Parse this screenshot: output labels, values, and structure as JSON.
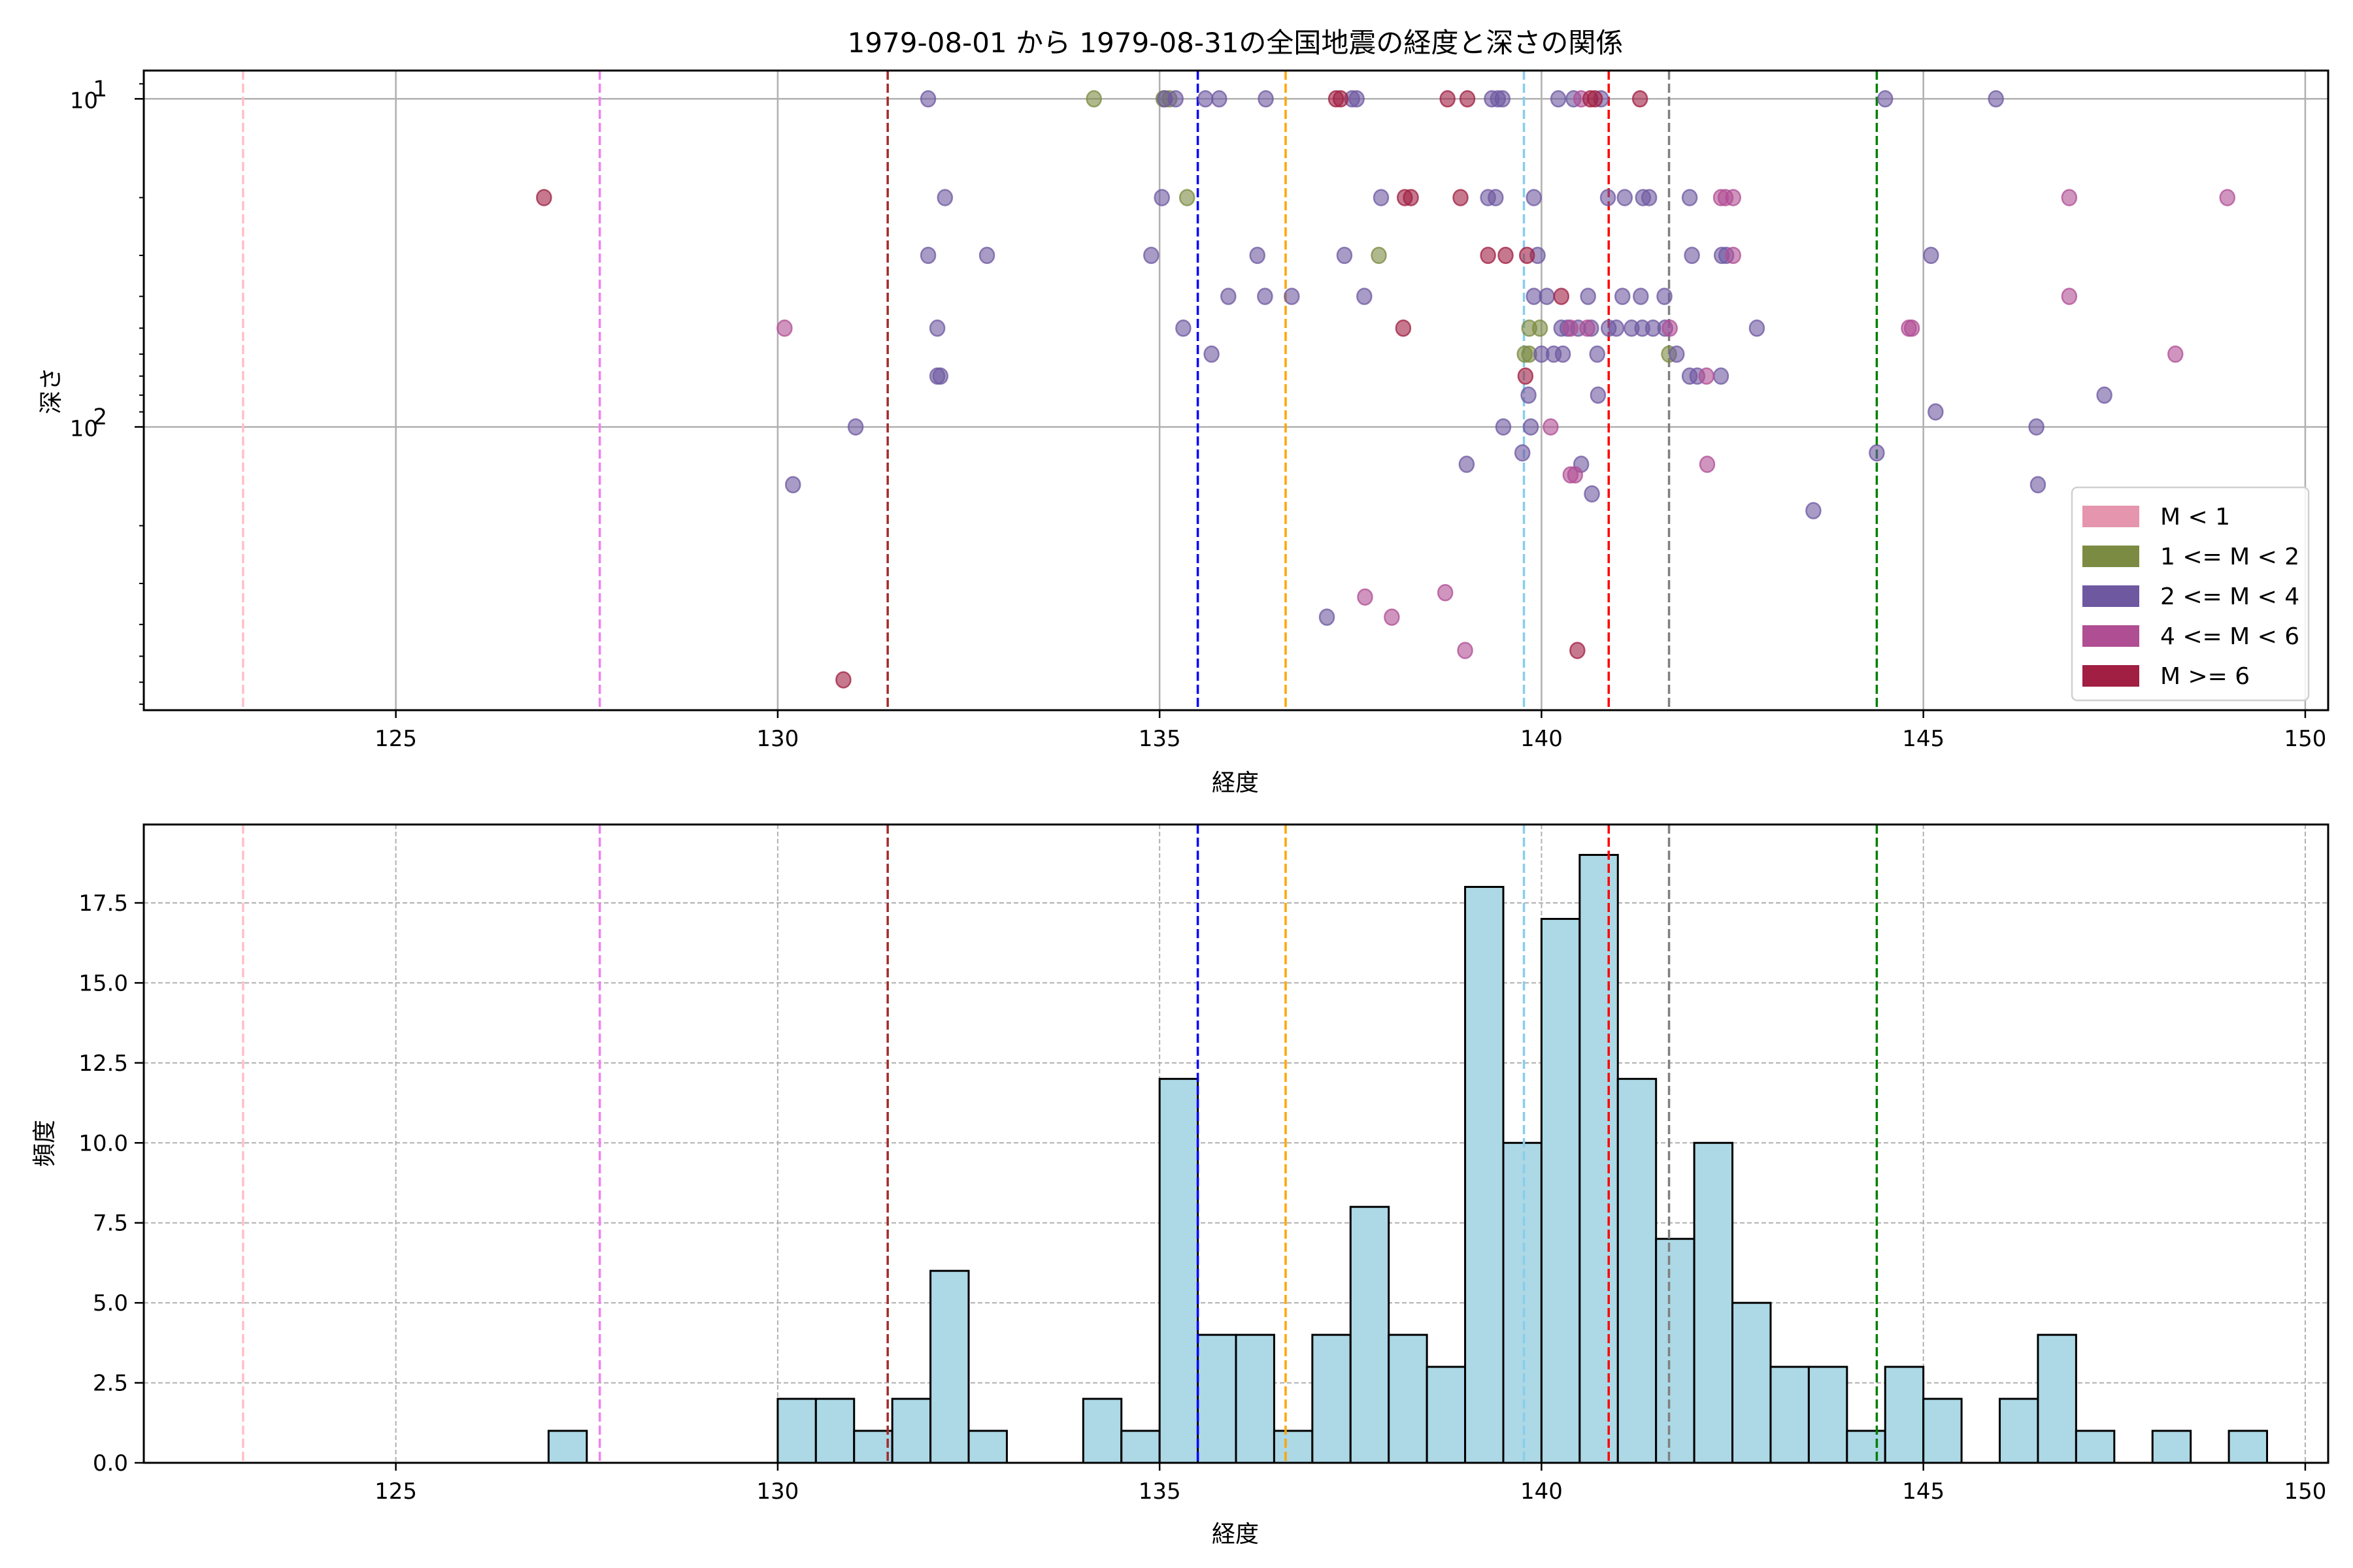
{
  "chart_data": [
    {
      "type": "scatter",
      "title": "1979-08-01 から 1979-08-31の全国地震の経度と深さの関係",
      "xlabel": "経度",
      "ylabel": "深さ",
      "xlim": [
        121.7,
        150.3
      ],
      "xticks": [
        125,
        130,
        135,
        140,
        145,
        150
      ],
      "xtick_labels": [
        "125",
        "130",
        "135",
        "140",
        "145",
        "150"
      ],
      "yscale": "log",
      "y_inverted": true,
      "ylim": [
        8.2,
        730
      ],
      "yticks": [
        10,
        100
      ],
      "ytick_labels": [
        [
          "10",
          "1"
        ],
        [
          "10",
          "2"
        ]
      ],
      "grid": true,
      "legend": {
        "placement": "lower-right",
        "entries": [
          {
            "label": "M < 1",
            "color": "#E595AE"
          },
          {
            "label": "1 <= M < 2",
            "color": "#7B8B42"
          },
          {
            "label": "2 <= M < 4",
            "color": "#6E58A0"
          },
          {
            "label": "4 <= M < 6",
            "color": "#B04E94"
          },
          {
            "label": "M >= 6",
            "color": "#A01F42"
          }
        ]
      },
      "vlines": [
        {
          "x": 123.0,
          "color": "#FFC0CB"
        },
        {
          "x": 127.67,
          "color": "#EE82EE"
        },
        {
          "x": 131.44,
          "color": "#A52A2A"
        },
        {
          "x": 135.5,
          "color": "#0000FF"
        },
        {
          "x": 136.65,
          "color": "#FFA500"
        },
        {
          "x": 139.77,
          "color": "#87CEEB"
        },
        {
          "x": 140.88,
          "color": "#FF0000"
        },
        {
          "x": 141.67,
          "color": "#808080"
        },
        {
          "x": 144.39,
          "color": "#008000"
        }
      ],
      "series": [
        {
          "name": "1 <= M < 2",
          "color": "#7B8B42",
          "points": [
            [
              134.14,
              10
            ],
            [
              135.05,
              10
            ],
            [
              135.13,
              10
            ],
            [
              135.36,
              20
            ],
            [
              137.87,
              30
            ],
            [
              139.84,
              50
            ],
            [
              139.98,
              50
            ],
            [
              139.78,
              60
            ],
            [
              139.84,
              60
            ],
            [
              141.67,
              60
            ]
          ]
        },
        {
          "name": "2 <= M < 4",
          "color": "#6E58A0",
          "points": [
            [
              131.97,
              10
            ],
            [
              135.07,
              10
            ],
            [
              135.21,
              10
            ],
            [
              135.6,
              10
            ],
            [
              135.78,
              10
            ],
            [
              136.39,
              10
            ],
            [
              137.52,
              10
            ],
            [
              137.58,
              10
            ],
            [
              139.35,
              10
            ],
            [
              139.43,
              10
            ],
            [
              139.49,
              10
            ],
            [
              140.22,
              10
            ],
            [
              140.42,
              10
            ],
            [
              140.78,
              10
            ],
            [
              144.5,
              10
            ],
            [
              145.95,
              10
            ],
            [
              132.19,
              20
            ],
            [
              135.03,
              20
            ],
            [
              137.9,
              20
            ],
            [
              139.3,
              20
            ],
            [
              139.4,
              20
            ],
            [
              139.9,
              20
            ],
            [
              140.87,
              20
            ],
            [
              141.09,
              20
            ],
            [
              141.33,
              20
            ],
            [
              141.41,
              20
            ],
            [
              141.94,
              20
            ],
            [
              131.97,
              30
            ],
            [
              132.74,
              30
            ],
            [
              134.89,
              30
            ],
            [
              136.28,
              30
            ],
            [
              137.42,
              30
            ],
            [
              139.95,
              30
            ],
            [
              141.97,
              30
            ],
            [
              142.36,
              30
            ],
            [
              142.42,
              30
            ],
            [
              145.1,
              30
            ],
            [
              135.9,
              40
            ],
            [
              136.38,
              40
            ],
            [
              136.73,
              40
            ],
            [
              137.68,
              40
            ],
            [
              139.9,
              40
            ],
            [
              140.07,
              40
            ],
            [
              140.61,
              40
            ],
            [
              141.06,
              40
            ],
            [
              141.3,
              40
            ],
            [
              141.61,
              40
            ],
            [
              132.09,
              50
            ],
            [
              135.31,
              50
            ],
            [
              140.26,
              50
            ],
            [
              140.34,
              50
            ],
            [
              140.48,
              50
            ],
            [
              140.65,
              50
            ],
            [
              140.88,
              50
            ],
            [
              140.98,
              50
            ],
            [
              141.18,
              50
            ],
            [
              141.32,
              50
            ],
            [
              141.46,
              50
            ],
            [
              141.62,
              50
            ],
            [
              142.82,
              50
            ],
            [
              135.68,
              60
            ],
            [
              140.0,
              60
            ],
            [
              140.16,
              60
            ],
            [
              140.28,
              60
            ],
            [
              140.73,
              60
            ],
            [
              141.77,
              60
            ],
            [
              132.09,
              70
            ],
            [
              132.13,
              70
            ],
            [
              141.94,
              70
            ],
            [
              142.04,
              70
            ],
            [
              142.35,
              70
            ],
            [
              139.83,
              80
            ],
            [
              140.74,
              80
            ],
            [
              147.37,
              80
            ],
            [
              145.16,
              90
            ],
            [
              131.02,
              100
            ],
            [
              139.5,
              100
            ],
            [
              139.86,
              100
            ],
            [
              146.48,
              100
            ],
            [
              139.75,
              120
            ],
            [
              144.39,
              120
            ],
            [
              139.02,
              130
            ],
            [
              140.52,
              130
            ],
            [
              130.2,
              150
            ],
            [
              146.5,
              150
            ],
            [
              140.66,
              160
            ],
            [
              143.56,
              180
            ],
            [
              137.19,
              380
            ]
          ]
        },
        {
          "name": "4 <= M < 6",
          "color": "#B04E94",
          "points": [
            [
              140.52,
              10
            ],
            [
              142.35,
              20
            ],
            [
              142.41,
              20
            ],
            [
              142.51,
              20
            ],
            [
              146.91,
              20
            ],
            [
              148.98,
              20
            ],
            [
              142.51,
              30
            ],
            [
              146.91,
              40
            ],
            [
              130.09,
              50
            ],
            [
              140.38,
              50
            ],
            [
              140.6,
              50
            ],
            [
              141.68,
              50
            ],
            [
              144.81,
              50
            ],
            [
              144.85,
              50
            ],
            [
              148.3,
              60
            ],
            [
              142.16,
              70
            ],
            [
              140.12,
              100
            ],
            [
              142.17,
              130
            ],
            [
              140.38,
              140
            ],
            [
              140.44,
              140
            ],
            [
              138.74,
              320
            ],
            [
              137.69,
              330
            ],
            [
              138.04,
              380
            ],
            [
              139.0,
              480
            ]
          ]
        },
        {
          "name": "M >= 6",
          "color": "#A01F42",
          "points": [
            [
              137.31,
              10
            ],
            [
              137.37,
              10
            ],
            [
              138.77,
              10
            ],
            [
              139.03,
              10
            ],
            [
              140.64,
              10
            ],
            [
              140.7,
              10
            ],
            [
              141.29,
              10
            ],
            [
              126.94,
              20
            ],
            [
              138.21,
              20
            ],
            [
              138.29,
              20
            ],
            [
              138.94,
              20
            ],
            [
              139.3,
              30
            ],
            [
              139.53,
              30
            ],
            [
              139.81,
              30
            ],
            [
              140.26,
              40
            ],
            [
              138.19,
              50
            ],
            [
              139.79,
              70
            ],
            [
              140.47,
              480
            ],
            [
              130.86,
              590
            ]
          ]
        }
      ]
    },
    {
      "type": "bar",
      "subtype": "histogram",
      "title": "",
      "xlabel": "経度",
      "ylabel": "頻度",
      "bin_width": 0.5,
      "xlim": [
        121.7,
        150.3
      ],
      "ylim": [
        0,
        19.95
      ],
      "xticks": [
        125,
        130,
        135,
        140,
        145,
        150
      ],
      "xtick_labels": [
        "125",
        "130",
        "135",
        "140",
        "145",
        "150"
      ],
      "yticks": [
        0,
        2.5,
        5,
        7.5,
        10,
        12.5,
        15,
        17.5
      ],
      "ytick_labels": [
        "0.0",
        "2.5",
        "5.0",
        "7.5",
        "10.0",
        "12.5",
        "15.0",
        "17.5"
      ],
      "grid": true,
      "bar_color": "#ADD8E6",
      "edge_color": "#000000",
      "bins": [
        {
          "x": 127.0,
          "count": 1
        },
        {
          "x": 130.0,
          "count": 2
        },
        {
          "x": 130.5,
          "count": 2
        },
        {
          "x": 131.0,
          "count": 1
        },
        {
          "x": 131.5,
          "count": 2
        },
        {
          "x": 132.0,
          "count": 6
        },
        {
          "x": 132.5,
          "count": 1
        },
        {
          "x": 134.0,
          "count": 2
        },
        {
          "x": 134.5,
          "count": 1
        },
        {
          "x": 135.0,
          "count": 12
        },
        {
          "x": 135.5,
          "count": 4
        },
        {
          "x": 136.0,
          "count": 4
        },
        {
          "x": 136.5,
          "count": 1
        },
        {
          "x": 137.0,
          "count": 4
        },
        {
          "x": 137.5,
          "count": 8
        },
        {
          "x": 138.0,
          "count": 4
        },
        {
          "x": 138.5,
          "count": 3
        },
        {
          "x": 139.0,
          "count": 18
        },
        {
          "x": 139.5,
          "count": 10
        },
        {
          "x": 140.0,
          "count": 17
        },
        {
          "x": 140.5,
          "count": 19
        },
        {
          "x": 141.0,
          "count": 12
        },
        {
          "x": 141.5,
          "count": 7
        },
        {
          "x": 142.0,
          "count": 10
        },
        {
          "x": 142.5,
          "count": 5
        },
        {
          "x": 143.0,
          "count": 3
        },
        {
          "x": 143.5,
          "count": 3
        },
        {
          "x": 144.0,
          "count": 1
        },
        {
          "x": 144.5,
          "count": 3
        },
        {
          "x": 145.0,
          "count": 2
        },
        {
          "x": 146.0,
          "count": 2
        },
        {
          "x": 146.5,
          "count": 4
        },
        {
          "x": 147.0,
          "count": 1
        },
        {
          "x": 148.0,
          "count": 1
        },
        {
          "x": 149.0,
          "count": 1
        }
      ],
      "vlines": [
        {
          "x": 123.0,
          "color": "#FFC0CB"
        },
        {
          "x": 127.67,
          "color": "#EE82EE"
        },
        {
          "x": 131.44,
          "color": "#A52A2A"
        },
        {
          "x": 135.5,
          "color": "#0000FF"
        },
        {
          "x": 136.65,
          "color": "#FFA500"
        },
        {
          "x": 139.77,
          "color": "#87CEEB"
        },
        {
          "x": 140.88,
          "color": "#FF0000"
        },
        {
          "x": 141.67,
          "color": "#808080"
        },
        {
          "x": 144.39,
          "color": "#008000"
        }
      ]
    }
  ]
}
